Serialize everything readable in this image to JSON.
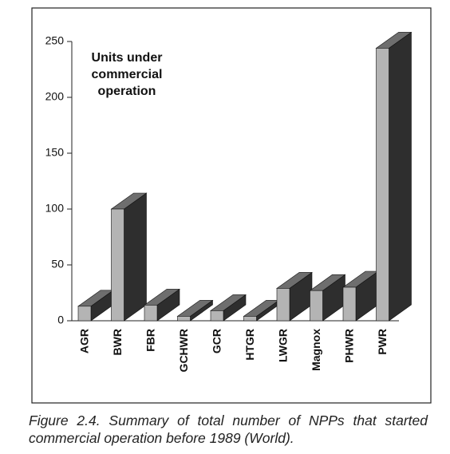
{
  "chart_data": {
    "type": "bar3d",
    "annotation": "Units under commercial operation",
    "caption": "Figure 2.4. Summary of total number of NPPs that started commercial operation before 1989 (World).",
    "categories": [
      "AGR",
      "BWR",
      "FBR",
      "GCHWR",
      "GCR",
      "HTGR",
      "LWGR",
      "Magnox",
      "PHWR",
      "PWR"
    ],
    "values": [
      13,
      100,
      14,
      4,
      9,
      4,
      29,
      27,
      30,
      244
    ],
    "color": "#b4b4b4",
    "ylim": [
      0,
      250
    ],
    "yticks": [
      0,
      50,
      100,
      150,
      200,
      250
    ],
    "grid": false
  }
}
